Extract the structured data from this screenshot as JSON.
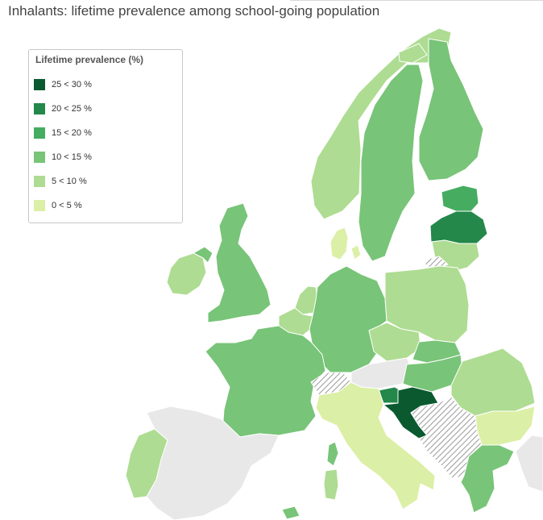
{
  "title": "Inhalants: lifetime prevalence among school-going population",
  "legend": {
    "title": "Lifetime prevalence (%)",
    "items": [
      {
        "label": "25 < 30 %",
        "color": "#0b5a2f"
      },
      {
        "label": "20 < 25 %",
        "color": "#23884a"
      },
      {
        "label": "15 < 20 %",
        "color": "#45ac60"
      },
      {
        "label": "10 < 15 %",
        "color": "#78c478"
      },
      {
        "label": "5 < 10 %",
        "color": "#aedc92"
      },
      {
        "label": "0 < 5 %",
        "color": "#dcefa6"
      }
    ]
  },
  "colors": {
    "no_data": "#e8e8e8",
    "hatched": "#a8a8a8",
    "border": "#ffffff"
  },
  "countries": [
    {
      "name": "Iceland-area",
      "class": "5 < 10 %"
    },
    {
      "name": "Norway",
      "class": "5 < 10 %"
    },
    {
      "name": "Sweden",
      "class": "10 < 15 %"
    },
    {
      "name": "Finland",
      "class": "10 < 15 %"
    },
    {
      "name": "Estonia",
      "class": "15 < 20 %"
    },
    {
      "name": "Latvia",
      "class": "20 < 25 %"
    },
    {
      "name": "Lithuania",
      "class": "5 < 10 %"
    },
    {
      "name": "Denmark",
      "class": "0 < 5 %"
    },
    {
      "name": "Ireland",
      "class": "5 < 10 %"
    },
    {
      "name": "Northern Ireland",
      "class": "10 < 15 %"
    },
    {
      "name": "United Kingdom",
      "class": "10 < 15 %"
    },
    {
      "name": "Netherlands",
      "class": "5 < 10 %"
    },
    {
      "name": "Belgium",
      "class": "5 < 10 %"
    },
    {
      "name": "Germany",
      "class": "10 < 15 %"
    },
    {
      "name": "Poland",
      "class": "5 < 10 %"
    },
    {
      "name": "France",
      "class": "10 < 15 %"
    },
    {
      "name": "Czechia",
      "class": "5 < 10 %"
    },
    {
      "name": "Slovakia",
      "class": "10 < 15 %"
    },
    {
      "name": "Hungary",
      "class": "10 < 15 %"
    },
    {
      "name": "Romania",
      "class": "5 < 10 %"
    },
    {
      "name": "Bulgaria",
      "class": "0 < 5 %"
    },
    {
      "name": "Slovenia",
      "class": "20 < 25 %"
    },
    {
      "name": "Croatia",
      "class": "25 < 30 %"
    },
    {
      "name": "Italy",
      "class": "0 < 5 %"
    },
    {
      "name": "Portugal",
      "class": "5 < 10 %"
    },
    {
      "name": "Greece",
      "class": "10 < 15 %"
    },
    {
      "name": "Corsica",
      "class": "10 < 15 %"
    },
    {
      "name": "Sardinia",
      "class": "5 < 10 %"
    },
    {
      "name": "Malta-area",
      "class": "10 < 15 %"
    },
    {
      "name": "Spain",
      "class": "no data"
    },
    {
      "name": "Austria",
      "class": "no data"
    },
    {
      "name": "Switzerland",
      "class": "hatched"
    },
    {
      "name": "Western Balkans",
      "class": "hatched"
    },
    {
      "name": "Kaliningrad",
      "class": "hatched"
    }
  ]
}
